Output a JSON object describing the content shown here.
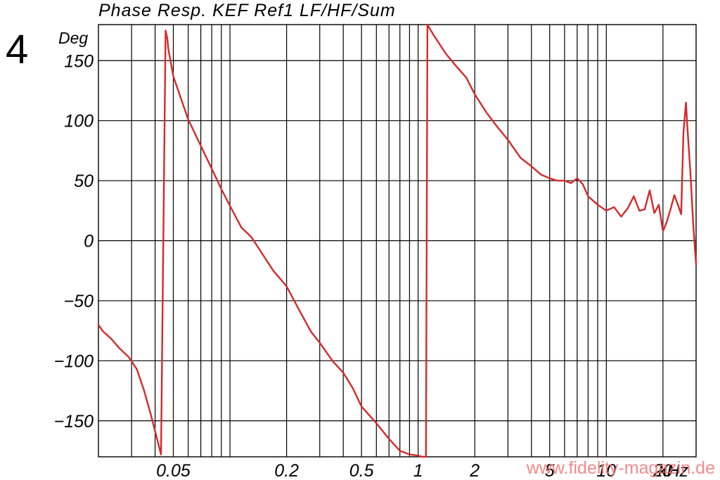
{
  "figure_number": "4",
  "watermark": "www.fidelity-magazin.de",
  "chart_data": {
    "type": "line",
    "title": "Phase Resp. KEF Ref1 LF/HF/Sum",
    "ylabel": "Deg",
    "x_unit_label": "kHz",
    "x_scale": "log",
    "xlim": [
      0.02,
      30
    ],
    "ylim": [
      -180,
      180
    ],
    "y_ticks": [
      150,
      100,
      50,
      0,
      -50,
      -100,
      -150
    ],
    "y_tick_labels": [
      "150",
      "100",
      "50",
      "0",
      "−50",
      "−100",
      "−150"
    ],
    "x_tick_labels": [
      {
        "value": 0.05,
        "label": "0.05"
      },
      {
        "value": 0.2,
        "label": "0.2"
      },
      {
        "value": 0.5,
        "label": "0.5"
      },
      {
        "value": 1,
        "label": "1"
      },
      {
        "value": 2,
        "label": "2"
      },
      {
        "value": 5,
        "label": "5"
      },
      {
        "value": 10,
        "label": "10"
      },
      {
        "value": 20,
        "label": "20"
      }
    ],
    "grid": true,
    "colors": {
      "trace": "#d42a2a",
      "grid": "#000000"
    },
    "series": [
      {
        "x": [
          0.02,
          0.021,
          0.0235,
          0.026,
          0.029,
          0.032,
          0.035,
          0.038,
          0.041,
          0.043,
          0.0455,
          0.0465,
          0.047,
          0.0485,
          0.05,
          0.055,
          0.06,
          0.07,
          0.08,
          0.09,
          0.1,
          0.115,
          0.13,
          0.15,
          0.17,
          0.2,
          0.23,
          0.27,
          0.3,
          0.35,
          0.4,
          0.45,
          0.5,
          0.6,
          0.7,
          0.8,
          0.9,
          1.0,
          1.05,
          1.1,
          1.12,
          1.2,
          1.4,
          1.6,
          1.8,
          2.0,
          2.3,
          2.6,
          3.0,
          3.5,
          4.0,
          4.5,
          5.0,
          5.5,
          6.0,
          6.5,
          7.0,
          7.5,
          8.0,
          9.0,
          10.0,
          11.0,
          12.0,
          13.0,
          14.0,
          15.0,
          16.0,
          17.0,
          18.0,
          19.0,
          20.0,
          21.0,
          22.0,
          23.0,
          24.0,
          25.0,
          25.7,
          26.5,
          27.0,
          28.0,
          29.0,
          30.0
        ],
        "y": [
          -70,
          -75,
          -82,
          -90,
          -97,
          -107,
          -125,
          -145,
          -165,
          -178,
          175,
          168,
          160,
          148,
          137,
          118,
          101,
          79,
          60,
          43,
          29,
          11,
          3,
          -12,
          -25,
          -38,
          -56,
          -76,
          -85,
          -100,
          -110,
          -123,
          -138,
          -152,
          -165,
          -175,
          -178,
          -179,
          -180,
          -180,
          180,
          172,
          156,
          145,
          136,
          122,
          107,
          96,
          84,
          69,
          62,
          55,
          52,
          50,
          50,
          48,
          52,
          47,
          37,
          30,
          25,
          28,
          20,
          27,
          37,
          25,
          26,
          42,
          23,
          30,
          8,
          16,
          27,
          38,
          30,
          22,
          90,
          115,
          93,
          56,
          12,
          -20
        ]
      }
    ]
  }
}
